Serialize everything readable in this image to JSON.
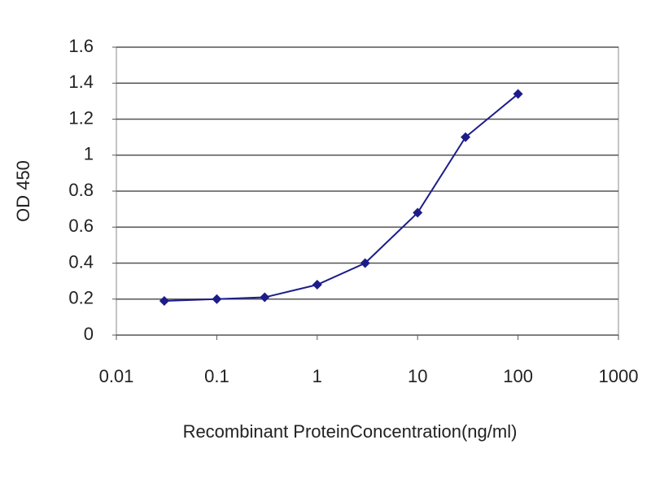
{
  "chart_data": {
    "type": "line",
    "x_label": "Recombinant ProteinConcentration(ng/ml)",
    "y_label": "OD 450",
    "x": [
      0.03,
      0.1,
      0.3,
      1,
      3,
      10,
      30,
      100
    ],
    "series": [
      {
        "color": "#1c1c8a",
        "values": [
          0.19,
          0.2,
          0.21,
          0.28,
          0.4,
          0.68,
          1.1,
          1.34
        ]
      }
    ],
    "x_log": true,
    "xlim": [
      0.01,
      1000
    ],
    "xticks": [
      0.01,
      0.1,
      1,
      10,
      100,
      1000
    ],
    "ylim": [
      0,
      1.6
    ],
    "yticks": [
      0,
      0.2,
      0.4,
      0.6,
      0.8,
      1,
      1.2,
      1.4,
      1.6
    ],
    "grid": true
  }
}
